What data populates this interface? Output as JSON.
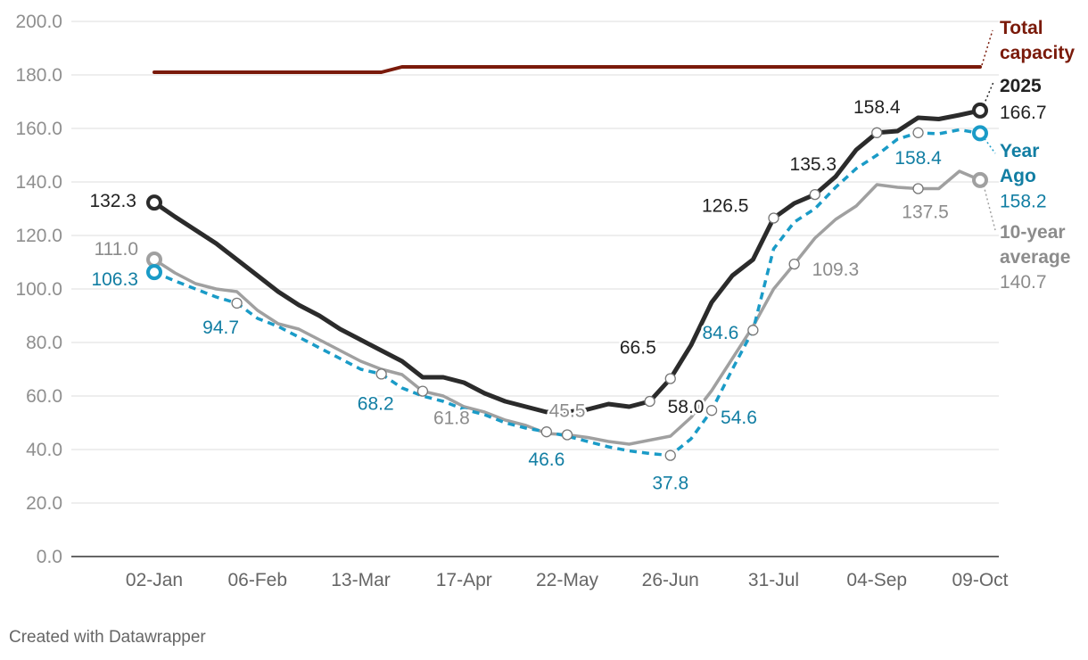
{
  "footer": "Created with Datawrapper",
  "chart_data": {
    "type": "line",
    "title": "",
    "xlabel": "",
    "ylabel": "",
    "ylim": [
      0,
      200
    ],
    "yticks": [
      0,
      20,
      40,
      60,
      80,
      100,
      120,
      140,
      160,
      180,
      200
    ],
    "ytick_labels": [
      "0.0",
      "20.0",
      "40.0",
      "60.0",
      "80.0",
      "100.0",
      "120.0",
      "140.0",
      "160.0",
      "180.0",
      "200.0"
    ],
    "x_categories": [
      "02-Jan",
      "09-Jan",
      "16-Jan",
      "23-Jan",
      "30-Jan",
      "06-Feb",
      "13-Feb",
      "20-Feb",
      "27-Feb",
      "06-Mar",
      "13-Mar",
      "20-Mar",
      "27-Mar",
      "03-Apr",
      "10-Apr",
      "17-Apr",
      "24-Apr",
      "01-May",
      "08-May",
      "15-May",
      "22-May",
      "29-May",
      "05-Jun",
      "12-Jun",
      "19-Jun",
      "26-Jun",
      "03-Jul",
      "10-Jul",
      "17-Jul",
      "24-Jul",
      "31-Jul",
      "07-Aug",
      "14-Aug",
      "21-Aug",
      "28-Aug",
      "04-Sep",
      "11-Sep",
      "18-Sep",
      "25-Sep",
      "02-Oct",
      "09-Oct"
    ],
    "x_tick_labels": [
      "02-Jan",
      "06-Feb",
      "13-Mar",
      "17-Apr",
      "22-May",
      "26-Jun",
      "31-Jul",
      "04-Sep",
      "09-Oct"
    ],
    "x_tick_index": [
      0,
      5,
      10,
      15,
      20,
      25,
      30,
      35,
      40
    ],
    "grid": true,
    "legend": "inline-right",
    "series": [
      {
        "name": "Total capacity",
        "color": "#7a1a0a",
        "style": "solid",
        "values": [
          181,
          181,
          181,
          181,
          181,
          181,
          181,
          181,
          181,
          181,
          181,
          181,
          183,
          183,
          183,
          183,
          183,
          183,
          183,
          183,
          183,
          183,
          183,
          183,
          183,
          183,
          183,
          183,
          183,
          183,
          183,
          183,
          183,
          183,
          183,
          183,
          183,
          183,
          183,
          183,
          183
        ]
      },
      {
        "name": "2025",
        "color": "#2b2b2b",
        "style": "solid",
        "values": [
          132.3,
          127,
          122,
          117,
          111,
          105,
          99,
          94,
          90,
          85,
          81,
          77,
          73,
          67,
          67,
          65,
          61,
          58,
          56,
          54,
          54,
          55,
          57,
          56,
          58,
          66.5,
          79,
          95,
          105,
          111,
          126.5,
          132,
          135.3,
          142,
          152,
          158.4,
          159,
          164,
          163.5,
          165,
          166.7
        ],
        "labels": [
          {
            "i": 0,
            "text": "132.3"
          },
          {
            "i": 24,
            "text": "58.0"
          },
          {
            "i": 25,
            "text": "66.5"
          },
          {
            "i": 30,
            "text": "126.5"
          },
          {
            "i": 32,
            "text": "135.3"
          },
          {
            "i": 35,
            "text": "158.4"
          },
          {
            "i": 40,
            "text": "166.7"
          }
        ]
      },
      {
        "name": "Year Ago",
        "color": "#1a9bc7",
        "label_color": "#127ea3",
        "style": "dashed",
        "values": [
          106.3,
          103,
          100,
          97,
          94.7,
          89,
          86,
          82,
          78,
          74,
          70,
          68.2,
          63,
          60,
          58,
          55,
          53,
          50,
          48,
          46.6,
          45,
          43,
          41,
          39.5,
          38.5,
          37.8,
          44,
          54.6,
          70,
          84.6,
          115,
          125,
          130,
          138,
          145,
          150,
          156,
          158.4,
          158,
          159.5,
          158.2
        ],
        "labels": [
          {
            "i": 0,
            "text": "106.3"
          },
          {
            "i": 4,
            "text": "94.7"
          },
          {
            "i": 11,
            "text": "68.2"
          },
          {
            "i": 19,
            "text": "46.6"
          },
          {
            "i": 25,
            "text": "37.8"
          },
          {
            "i": 27,
            "text": "54.6"
          },
          {
            "i": 29,
            "text": "84.6"
          },
          {
            "i": 37,
            "text": "158.4"
          },
          {
            "i": 40,
            "text": "158.2"
          }
        ]
      },
      {
        "name": "10-year average",
        "color": "#a0a0a0",
        "label_color": "#8c8c8c",
        "style": "solid",
        "values": [
          111,
          106,
          102,
          100,
          99,
          92,
          87,
          85,
          81,
          77,
          73,
          70,
          68,
          61.8,
          60,
          56,
          54,
          51,
          49,
          46,
          45.5,
          44.5,
          43,
          42,
          43.5,
          45,
          52,
          62,
          74,
          86,
          100,
          109.3,
          119,
          126,
          131,
          139,
          138,
          137.5,
          137.5,
          144,
          140.7
        ],
        "labels": [
          {
            "i": 0,
            "text": "111.0"
          },
          {
            "i": 13,
            "text": "61.8"
          },
          {
            "i": 20,
            "text": "45.5"
          },
          {
            "i": 31,
            "text": "109.3"
          },
          {
            "i": 37,
            "text": "137.5"
          },
          {
            "i": 40,
            "text": "140.7"
          }
        ]
      }
    ],
    "legend_labels": [
      {
        "lines": [
          "Total",
          "capacity"
        ],
        "color": "#7a1a0a"
      },
      {
        "lines": [
          "2025"
        ],
        "color": "#222222"
      },
      {
        "lines": [
          "Year",
          "Ago"
        ],
        "color": "#127ea3"
      },
      {
        "lines": [
          "10-year",
          "average"
        ],
        "color": "#8c8c8c"
      }
    ]
  }
}
